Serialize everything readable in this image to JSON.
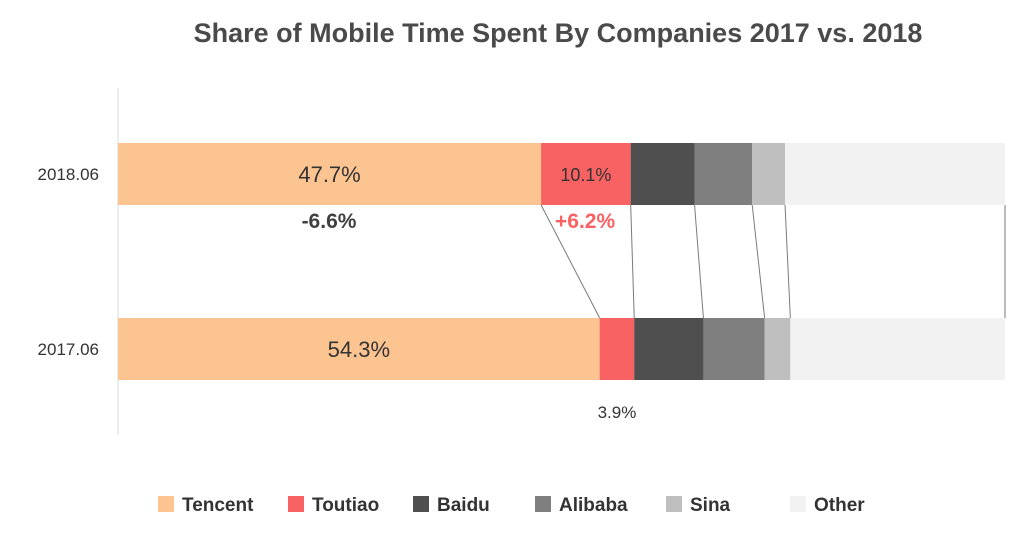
{
  "chart_data": {
    "type": "bar",
    "orientation": "horizontal",
    "stacked": true,
    "title": "Share of Mobile Time Spent By Companies 2017 vs. 2018",
    "categories": [
      "2018.06",
      "2017.06"
    ],
    "xlim": [
      0,
      100
    ],
    "grid": false,
    "legend_position": "bottom",
    "series": [
      {
        "name": "Tencent",
        "color": "#fcc490",
        "values": [
          47.7,
          54.3
        ],
        "labels": [
          "47.7%",
          "54.3%"
        ]
      },
      {
        "name": "Toutiao",
        "color": "#f96262",
        "values": [
          10.1,
          3.9
        ],
        "labels": [
          "10.1%",
          "3.9%"
        ]
      },
      {
        "name": "Baidu",
        "color": "#4f4f4f",
        "values": [
          7.2,
          7.8
        ],
        "labels": [
          "",
          ""
        ]
      },
      {
        "name": "Alibaba",
        "color": "#7f7f7f",
        "values": [
          6.5,
          6.9
        ],
        "labels": [
          "",
          ""
        ]
      },
      {
        "name": "Sina",
        "color": "#bfbfbf",
        "values": [
          3.7,
          2.9
        ],
        "labels": [
          "",
          ""
        ]
      },
      {
        "name": "Other",
        "color": "#f2f2f2",
        "values": [
          24.8,
          24.2
        ],
        "labels": [
          "",
          ""
        ]
      }
    ],
    "annotations": [
      {
        "text": "-6.6%",
        "series": "Tencent",
        "color": "#404040"
      },
      {
        "text": "+6.2%",
        "series": "Toutiao",
        "color": "#f96262"
      }
    ]
  }
}
